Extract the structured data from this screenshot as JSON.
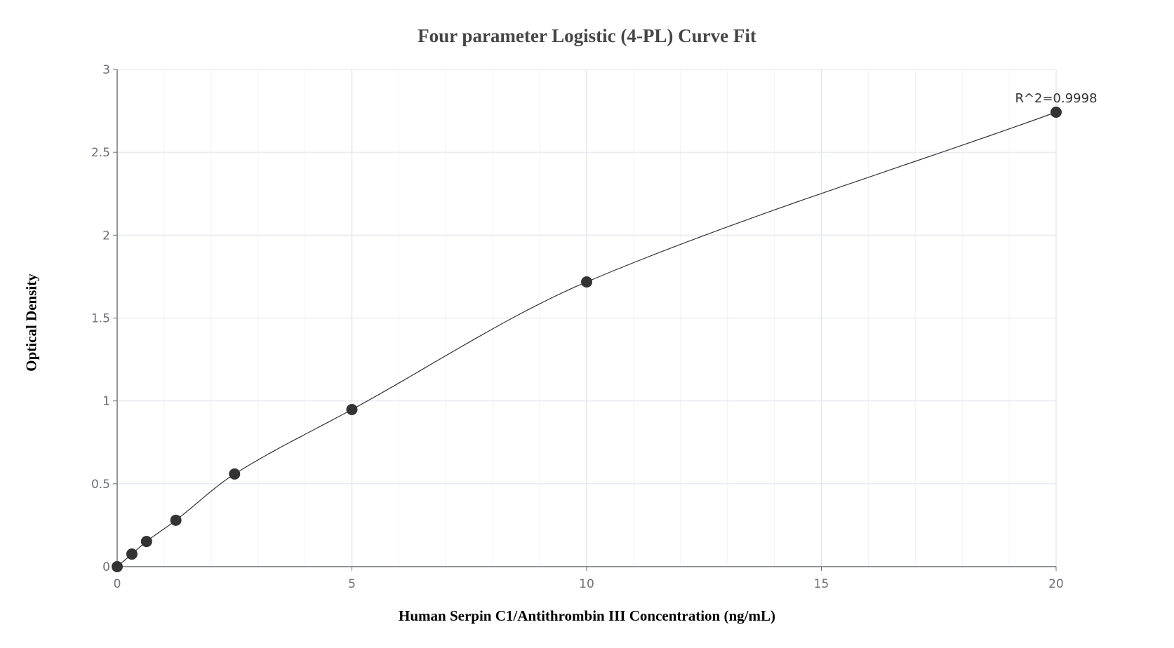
{
  "chart_data": {
    "type": "scatter",
    "title": "Four parameter Logistic (4-PL) Curve Fit",
    "xlabel": "Human Serpin C1/Antithrombin III Concentration (ng/mL)",
    "ylabel": "Optical Density",
    "xlim": [
      0,
      20
    ],
    "ylim": [
      0,
      3
    ],
    "x_ticks": [
      "0",
      "5",
      "10",
      "15",
      "20"
    ],
    "y_ticks": [
      "0",
      "0.5",
      "1",
      "1.5",
      "2",
      "2.5",
      "3"
    ],
    "grid": true,
    "series": [
      {
        "name": "Standards",
        "x": [
          0,
          0.313,
          0.625,
          1.25,
          2.5,
          5,
          10,
          20
        ],
        "y": [
          0.0,
          0.076,
          0.152,
          0.28,
          0.559,
          0.948,
          1.718,
          2.742
        ]
      },
      {
        "name": "4-PL fit",
        "type": "line"
      }
    ],
    "annotations": [
      {
        "text": "R^2=0.9998",
        "x": 20,
        "y": 2.742
      }
    ]
  },
  "colors": {
    "point": "#333333",
    "line": "#333333",
    "grid": "#e6e9f3",
    "axis": "#6e7079"
  }
}
